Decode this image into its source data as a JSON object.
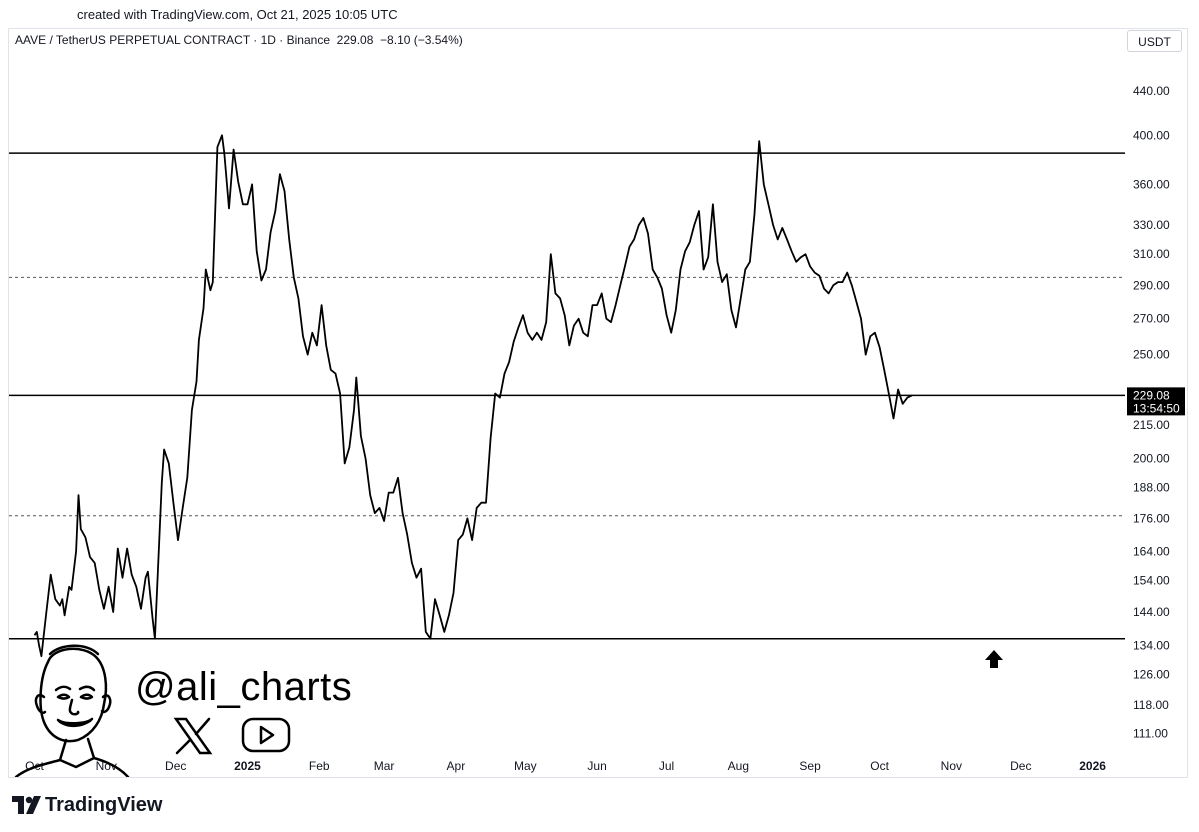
{
  "created_text": "created with TradingView.com, Oct 21, 2025 10:05 UTC",
  "legend": {
    "symbol": "AAVE / TetherUS PERPETUAL CONTRACT · 1D · Binance",
    "price": "229.08",
    "change": "−8.10 (−3.54%)"
  },
  "currency": "USDT",
  "price_label": {
    "value": "229.08",
    "countdown": "13:54:50"
  },
  "watermark": {
    "handle": "@ali_charts",
    "icons": [
      "x-logo-icon",
      "youtube-icon",
      "avatar-illustration",
      "up-arrow-icon"
    ]
  },
  "footer": {
    "brand": "TradingView"
  },
  "colors": {
    "line": "#000000",
    "background": "#ffffff",
    "price_label_bg": "#000000"
  },
  "chart_data": {
    "type": "line",
    "title": "",
    "xlabel": "",
    "ylabel": "",
    "scale": "log",
    "grid": false,
    "ylim": [
      106,
      470
    ],
    "y_ticks": [
      "440.00",
      "400.00",
      "360.00",
      "330.00",
      "310.00",
      "290.00",
      "270.00",
      "250.00",
      "229.08",
      "215.00",
      "200.00",
      "188.00",
      "176.00",
      "164.00",
      "154.00",
      "144.00",
      "134.00",
      "126.00",
      "118.00",
      "111.00"
    ],
    "x_ticks": [
      "Oct",
      "Nov",
      "Dec",
      "2025",
      "Feb",
      "Mar",
      "Apr",
      "May",
      "Jun",
      "Jul",
      "Aug",
      "Sep",
      "Oct",
      "Nov",
      "Dec",
      "2026"
    ],
    "horizontal_lines": [
      {
        "value": 385,
        "style": "solid"
      },
      {
        "value": 295,
        "style": "dashed"
      },
      {
        "value": 229.08,
        "style": "solid"
      },
      {
        "value": 177,
        "style": "dashed"
      },
      {
        "value": 136,
        "style": "solid"
      }
    ],
    "series": [
      {
        "values": [
          [
            "2024-10-01",
            137
          ],
          [
            "2024-10-02",
            138
          ],
          [
            "2024-10-03",
            134
          ],
          [
            "2024-10-04",
            131
          ],
          [
            "2024-10-06",
            143
          ],
          [
            "2024-10-08",
            156
          ],
          [
            "2024-10-10",
            148
          ],
          [
            "2024-10-12",
            146
          ],
          [
            "2024-10-13",
            148
          ],
          [
            "2024-10-14",
            143
          ],
          [
            "2024-10-16",
            152
          ],
          [
            "2024-10-17",
            151
          ],
          [
            "2024-10-19",
            164
          ],
          [
            "2024-10-20",
            185
          ],
          [
            "2024-10-21",
            172
          ],
          [
            "2024-10-23",
            169
          ],
          [
            "2024-10-25",
            162
          ],
          [
            "2024-10-27",
            160
          ],
          [
            "2024-10-29",
            151
          ],
          [
            "2024-10-31",
            145
          ],
          [
            "2024-11-02",
            152
          ],
          [
            "2024-11-04",
            144
          ],
          [
            "2024-11-06",
            165
          ],
          [
            "2024-11-08",
            155
          ],
          [
            "2024-11-10",
            165
          ],
          [
            "2024-11-12",
            156
          ],
          [
            "2024-11-14",
            152
          ],
          [
            "2024-11-16",
            145
          ],
          [
            "2024-11-18",
            155
          ],
          [
            "2024-11-19",
            157
          ],
          [
            "2024-11-21",
            142
          ],
          [
            "2024-11-22",
            136
          ],
          [
            "2024-11-25",
            190
          ],
          [
            "2024-11-26",
            204
          ],
          [
            "2024-11-28",
            198
          ],
          [
            "2024-11-30",
            182
          ],
          [
            "2024-12-02",
            168
          ],
          [
            "2024-12-04",
            180
          ],
          [
            "2024-12-06",
            192
          ],
          [
            "2024-12-08",
            222
          ],
          [
            "2024-12-10",
            236
          ],
          [
            "2024-12-11",
            258
          ],
          [
            "2024-12-13",
            276
          ],
          [
            "2024-12-14",
            300
          ],
          [
            "2024-12-16",
            287
          ],
          [
            "2024-12-17",
            292
          ],
          [
            "2024-12-19",
            390
          ],
          [
            "2024-12-21",
            400
          ],
          [
            "2024-12-22",
            385
          ],
          [
            "2024-12-24",
            342
          ],
          [
            "2024-12-26",
            388
          ],
          [
            "2024-12-28",
            362
          ],
          [
            "2024-12-30",
            345
          ],
          [
            "2025-01-01",
            345
          ],
          [
            "2025-01-03",
            360
          ],
          [
            "2025-01-05",
            312
          ],
          [
            "2025-01-07",
            293
          ],
          [
            "2025-01-09",
            300
          ],
          [
            "2025-01-11",
            325
          ],
          [
            "2025-01-13",
            340
          ],
          [
            "2025-01-15",
            368
          ],
          [
            "2025-01-17",
            355
          ],
          [
            "2025-01-19",
            320
          ],
          [
            "2025-01-21",
            295
          ],
          [
            "2025-01-23",
            282
          ],
          [
            "2025-01-25",
            260
          ],
          [
            "2025-01-27",
            250
          ],
          [
            "2025-01-29",
            262
          ],
          [
            "2025-01-31",
            255
          ],
          [
            "2025-02-02",
            278
          ],
          [
            "2025-02-04",
            255
          ],
          [
            "2025-02-06",
            242
          ],
          [
            "2025-02-08",
            240
          ],
          [
            "2025-02-10",
            230
          ],
          [
            "2025-02-12",
            198
          ],
          [
            "2025-02-14",
            205
          ],
          [
            "2025-02-16",
            222
          ],
          [
            "2025-02-17",
            238
          ],
          [
            "2025-02-19",
            210
          ],
          [
            "2025-02-21",
            200
          ],
          [
            "2025-02-23",
            185
          ],
          [
            "2025-02-25",
            178
          ],
          [
            "2025-02-27",
            180
          ],
          [
            "2025-03-01",
            175
          ],
          [
            "2025-03-03",
            186
          ],
          [
            "2025-03-05",
            186
          ],
          [
            "2025-03-07",
            192
          ],
          [
            "2025-03-09",
            178
          ],
          [
            "2025-03-11",
            170
          ],
          [
            "2025-03-13",
            160
          ],
          [
            "2025-03-15",
            155
          ],
          [
            "2025-03-17",
            158
          ],
          [
            "2025-03-19",
            138
          ],
          [
            "2025-03-21",
            136
          ],
          [
            "2025-03-23",
            148
          ],
          [
            "2025-03-25",
            143
          ],
          [
            "2025-03-27",
            138
          ],
          [
            "2025-03-29",
            143
          ],
          [
            "2025-03-31",
            150
          ],
          [
            "2025-04-02",
            168
          ],
          [
            "2025-04-04",
            170
          ],
          [
            "2025-04-06",
            176
          ],
          [
            "2025-04-08",
            168
          ],
          [
            "2025-04-10",
            180
          ],
          [
            "2025-04-12",
            182
          ],
          [
            "2025-04-14",
            182
          ],
          [
            "2025-04-16",
            209
          ],
          [
            "2025-04-18",
            230
          ],
          [
            "2025-04-20",
            228
          ],
          [
            "2025-04-22",
            240
          ],
          [
            "2025-04-24",
            246
          ],
          [
            "2025-04-26",
            257
          ],
          [
            "2025-04-28",
            265
          ],
          [
            "2025-04-30",
            272
          ],
          [
            "2025-05-02",
            262
          ],
          [
            "2025-05-04",
            258
          ],
          [
            "2025-05-06",
            262
          ],
          [
            "2025-05-08",
            258
          ],
          [
            "2025-05-10",
            268
          ],
          [
            "2025-05-12",
            310
          ],
          [
            "2025-05-14",
            285
          ],
          [
            "2025-05-16",
            282
          ],
          [
            "2025-05-18",
            272
          ],
          [
            "2025-05-20",
            255
          ],
          [
            "2025-05-22",
            266
          ],
          [
            "2025-05-24",
            270
          ],
          [
            "2025-05-26",
            262
          ],
          [
            "2025-05-28",
            260
          ],
          [
            "2025-05-30",
            278
          ],
          [
            "2025-06-01",
            278
          ],
          [
            "2025-06-03",
            285
          ],
          [
            "2025-06-05",
            270
          ],
          [
            "2025-06-07",
            268
          ],
          [
            "2025-06-09",
            278
          ],
          [
            "2025-06-11",
            290
          ],
          [
            "2025-06-13",
            302
          ],
          [
            "2025-06-15",
            315
          ],
          [
            "2025-06-17",
            320
          ],
          [
            "2025-06-19",
            330
          ],
          [
            "2025-06-21",
            335
          ],
          [
            "2025-06-23",
            324
          ],
          [
            "2025-06-25",
            300
          ],
          [
            "2025-06-27",
            295
          ],
          [
            "2025-06-29",
            288
          ],
          [
            "2025-07-01",
            272
          ],
          [
            "2025-07-03",
            262
          ],
          [
            "2025-07-05",
            275
          ],
          [
            "2025-07-07",
            300
          ],
          [
            "2025-07-09",
            312
          ],
          [
            "2025-07-11",
            318
          ],
          [
            "2025-07-13",
            330
          ],
          [
            "2025-07-15",
            340
          ],
          [
            "2025-07-17",
            300
          ],
          [
            "2025-07-19",
            308
          ],
          [
            "2025-07-21",
            345
          ],
          [
            "2025-07-23",
            305
          ],
          [
            "2025-07-25",
            292
          ],
          [
            "2025-07-27",
            297
          ],
          [
            "2025-07-29",
            275
          ],
          [
            "2025-07-31",
            265
          ],
          [
            "2025-08-02",
            282
          ],
          [
            "2025-08-04",
            300
          ],
          [
            "2025-08-06",
            305
          ],
          [
            "2025-08-08",
            338
          ],
          [
            "2025-08-10",
            395
          ],
          [
            "2025-08-12",
            360
          ],
          [
            "2025-08-14",
            345
          ],
          [
            "2025-08-16",
            330
          ],
          [
            "2025-08-18",
            320
          ],
          [
            "2025-08-20",
            328
          ],
          [
            "2025-08-22",
            320
          ],
          [
            "2025-08-24",
            312
          ],
          [
            "2025-08-26",
            305
          ],
          [
            "2025-08-28",
            308
          ],
          [
            "2025-08-30",
            310
          ],
          [
            "2025-09-01",
            302
          ],
          [
            "2025-09-03",
            298
          ],
          [
            "2025-09-05",
            296
          ],
          [
            "2025-09-07",
            288
          ],
          [
            "2025-09-09",
            285
          ],
          [
            "2025-09-11",
            290
          ],
          [
            "2025-09-13",
            292
          ],
          [
            "2025-09-15",
            292
          ],
          [
            "2025-09-17",
            298
          ],
          [
            "2025-09-19",
            290
          ],
          [
            "2025-09-21",
            280
          ],
          [
            "2025-09-23",
            270
          ],
          [
            "2025-09-25",
            250
          ],
          [
            "2025-09-27",
            260
          ],
          [
            "2025-09-29",
            262
          ],
          [
            "2025-10-01",
            254
          ],
          [
            "2025-10-03",
            242
          ],
          [
            "2025-10-05",
            230
          ],
          [
            "2025-10-07",
            218
          ],
          [
            "2025-10-09",
            232
          ],
          [
            "2025-10-11",
            225
          ],
          [
            "2025-10-13",
            228
          ],
          [
            "2025-10-15",
            229.08
          ]
        ]
      }
    ]
  }
}
